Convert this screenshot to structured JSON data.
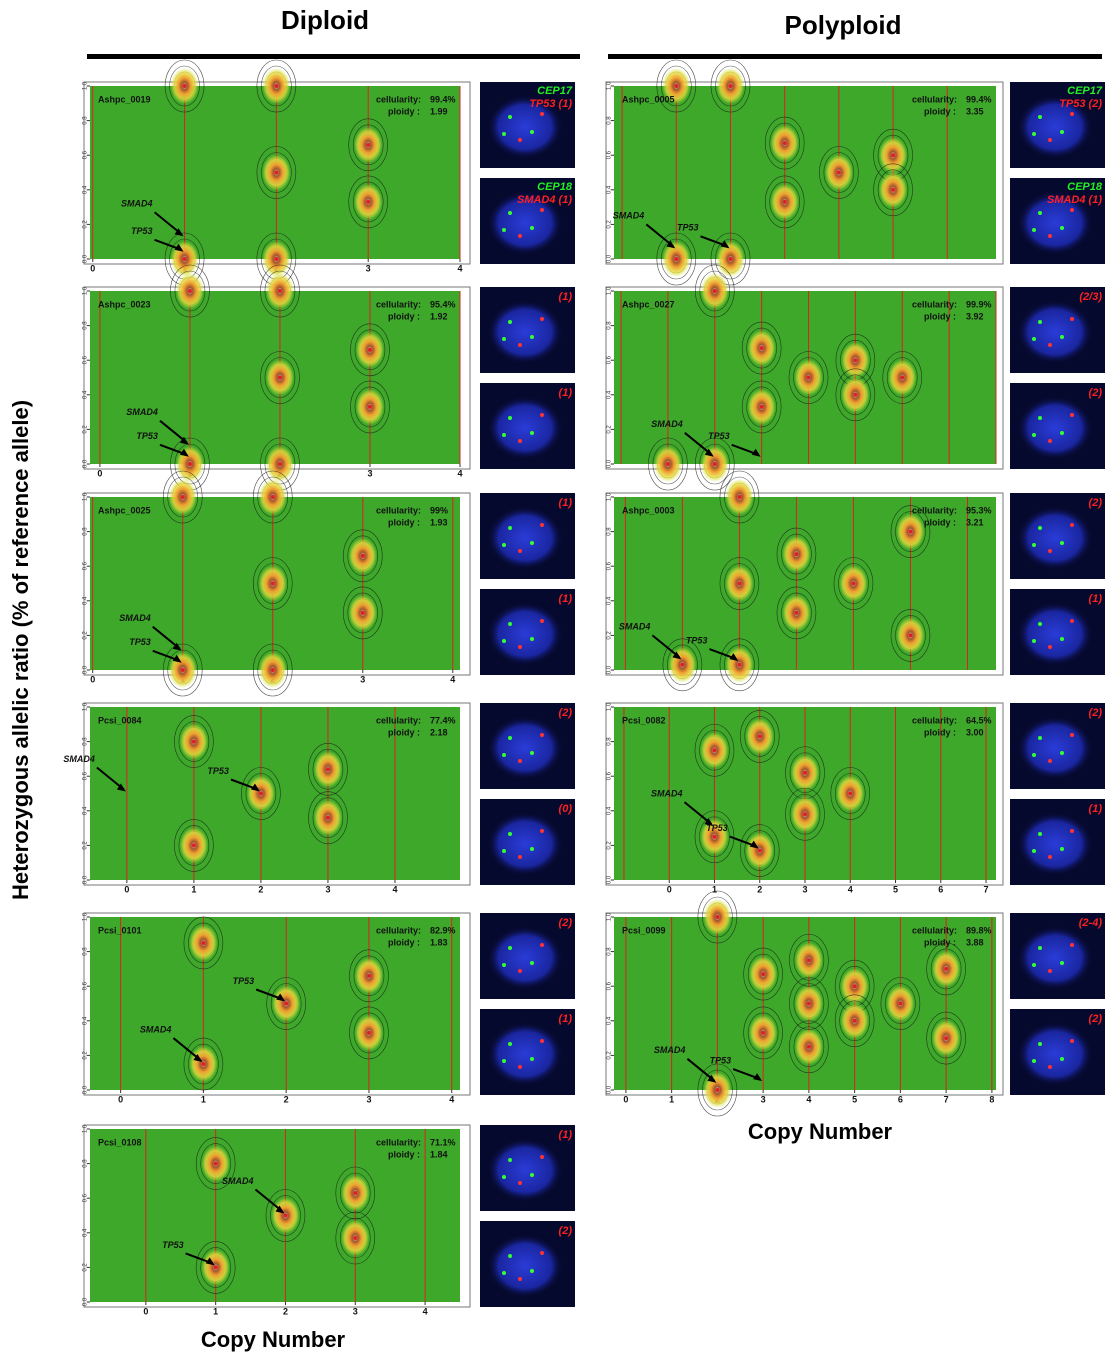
{
  "headers": {
    "diploid": "Diploid",
    "polyploid": "Polyploid"
  },
  "y_label": "Heterozygous allelic ratio (% of reference allele)",
  "x_label_left": "Copy Number",
  "x_label_right": "Copy Number",
  "cellularity_label": "cellularity:",
  "ploidy_label": "ploidy :",
  "yticks": [
    {
      "value": 0,
      "label": "0.0"
    },
    {
      "value": 0.2,
      "label": "0.2"
    },
    {
      "value": 0.4,
      "label": "0.4"
    },
    {
      "value": 0.6,
      "label": "0.6"
    },
    {
      "value": 0.8,
      "label": "0.8"
    },
    {
      "value": 1,
      "label": "1.0"
    }
  ],
  "panels": [
    {
      "column": "left",
      "id": "Ashpc_0019",
      "cellularity": "99.4%",
      "ploidy": "1.99",
      "xlim": [
        -0.03,
        4.0
      ],
      "xticks": [
        0,
        1,
        2,
        3,
        4
      ],
      "peaks": [
        [
          1,
          1
        ],
        [
          1,
          0
        ],
        [
          2,
          0.5
        ],
        [
          2,
          1
        ],
        [
          2,
          0
        ],
        [
          3,
          0.66
        ],
        [
          3,
          0.33
        ]
      ],
      "genes": [
        {
          "label": "SMAD4",
          "target": [
            1,
            0.12
          ]
        },
        {
          "label": "TP53",
          "target": [
            1,
            0.03
          ]
        }
      ],
      "fish": [
        {
          "probe": "CEP17",
          "target": "TP53 (1)"
        },
        {
          "probe": "CEP18",
          "target": "SMAD4 (1)"
        }
      ]
    },
    {
      "column": "left",
      "id": "Ashpc_0023",
      "cellularity": "95.4%",
      "ploidy": "1.92",
      "xlim": [
        -0.11,
        4.0
      ],
      "xticks": [
        0,
        1,
        2,
        3,
        4
      ],
      "peaks": [
        [
          1,
          1
        ],
        [
          1,
          0
        ],
        [
          2,
          0.5
        ],
        [
          2,
          1
        ],
        [
          2,
          0
        ],
        [
          3,
          0.66
        ],
        [
          3,
          0.33
        ]
      ],
      "genes": [
        {
          "label": "SMAD4",
          "target": [
            1,
            0.1
          ]
        },
        {
          "label": "TP53",
          "target": [
            1,
            0.03
          ]
        }
      ],
      "fish": [
        {
          "count": "(1)"
        },
        {
          "count": "(1)"
        }
      ]
    },
    {
      "column": "left",
      "id": "Ashpc_0025",
      "cellularity": "99%",
      "ploidy": "1.93",
      "xlim": [
        -0.03,
        4.08
      ],
      "xticks": [
        0,
        1,
        2,
        3,
        4
      ],
      "peaks": [
        [
          1,
          1
        ],
        [
          1,
          0
        ],
        [
          2,
          0.5
        ],
        [
          2,
          1
        ],
        [
          2,
          0
        ],
        [
          3,
          0.66
        ],
        [
          3,
          0.33
        ]
      ],
      "genes": [
        {
          "label": "SMAD4",
          "target": [
            1,
            0.1
          ]
        },
        {
          "label": "TP53",
          "target": [
            1,
            0.03
          ]
        }
      ],
      "fish": [
        {
          "count": "(1)"
        },
        {
          "count": "(1)"
        }
      ]
    },
    {
      "column": "left",
      "id": "Pcsi_0084",
      "cellularity": "77.4%",
      "ploidy": "2.18",
      "xlim": [
        -0.55,
        4.97
      ],
      "xticks": [
        0,
        1,
        2,
        3,
        4
      ],
      "peaks": [
        [
          1,
          0.8
        ],
        [
          1,
          0.2
        ],
        [
          2,
          0.5
        ],
        [
          3,
          0.64
        ],
        [
          3,
          0.36
        ]
      ],
      "genes": [
        {
          "label": "SMAD4",
          "target": [
            0,
            0.5
          ]
        },
        {
          "label": "TP53",
          "target": [
            2,
            0.5
          ]
        }
      ],
      "fish": [
        {
          "count": "(2)"
        },
        {
          "count": "(0)"
        }
      ]
    },
    {
      "column": "left",
      "id": "Pcsi_0101",
      "cellularity": "82.9%",
      "ploidy": "1.83",
      "xlim": [
        -0.37,
        4.1
      ],
      "xticks": [
        0,
        1,
        2,
        3,
        4
      ],
      "peaks": [
        [
          1,
          0.85
        ],
        [
          1,
          0.15
        ],
        [
          2,
          0.5
        ],
        [
          3,
          0.66
        ],
        [
          3,
          0.33
        ]
      ],
      "genes": [
        {
          "label": "SMAD4",
          "target": [
            1,
            0.15
          ]
        },
        {
          "label": "TP53",
          "target": [
            2,
            0.5
          ]
        }
      ],
      "fish": [
        {
          "count": "(2)"
        },
        {
          "count": "(1)"
        }
      ]
    },
    {
      "column": "left",
      "id": "Pcsi_0108",
      "cellularity": "71.1%",
      "ploidy": "1.84",
      "xlim": [
        -0.8,
        4.5
      ],
      "xticks": [
        0,
        1,
        2,
        3,
        4
      ],
      "peaks": [
        [
          1,
          0.8
        ],
        [
          1,
          0.2
        ],
        [
          2,
          0.5
        ],
        [
          3,
          0.63
        ],
        [
          3,
          0.37
        ]
      ],
      "genes": [
        {
          "label": "SMAD4",
          "target": [
            2,
            0.5
          ]
        },
        {
          "label": "TP53",
          "target": [
            1,
            0.2
          ]
        }
      ],
      "fish": [
        {
          "count": "(1)"
        },
        {
          "count": "(2)"
        }
      ]
    },
    {
      "column": "right",
      "id": "Ashpc_0005",
      "cellularity": "99.4%",
      "ploidy": "3.35",
      "xlim": [
        -0.15,
        6.9
      ],
      "peaks": [
        [
          1,
          1
        ],
        [
          1,
          0
        ],
        [
          2,
          0
        ],
        [
          2,
          1
        ],
        [
          3,
          0.67
        ],
        [
          3,
          0.33
        ],
        [
          4,
          0.5
        ],
        [
          5,
          0.6
        ],
        [
          5,
          0.4
        ]
      ],
      "genes": [
        {
          "label": "SMAD4",
          "target": [
            1,
            0.05
          ]
        },
        {
          "label": "TP53",
          "target": [
            2,
            0.05
          ]
        }
      ],
      "fish": [
        {
          "probe": "CEP17",
          "target": "TP53 (2)"
        },
        {
          "probe": "CEP18",
          "target": "SMAD4 (1)"
        }
      ]
    },
    {
      "column": "right",
      "id": "Ashpc_0027",
      "cellularity": "99.9%",
      "ploidy": "3.92",
      "xlim": [
        -0.15,
        8.0
      ],
      "peaks": [
        [
          1,
          0
        ],
        [
          2,
          0
        ],
        [
          2,
          1
        ],
        [
          3,
          0.67
        ],
        [
          3,
          0.33
        ],
        [
          4,
          0.5
        ],
        [
          5,
          0.6
        ],
        [
          5,
          0.4
        ],
        [
          6,
          0.5
        ]
      ],
      "genes": [
        {
          "label": "SMAD4",
          "target": [
            2,
            0.03
          ]
        },
        {
          "label": "TP53",
          "target": [
            3,
            0.03
          ]
        }
      ],
      "fish": [
        {
          "count": "(2/3)"
        },
        {
          "count": "(2)"
        }
      ]
    },
    {
      "column": "right",
      "id": "Ashpc_0003",
      "cellularity": "95.3%",
      "ploidy": "3.21",
      "xlim": [
        -0.2,
        6.5
      ],
      "peaks": [
        [
          1,
          0.03
        ],
        [
          2,
          0.03
        ],
        [
          2,
          1
        ],
        [
          2,
          0.5
        ],
        [
          3,
          0.67
        ],
        [
          3,
          0.33
        ],
        [
          4,
          0.5
        ],
        [
          5,
          0.8
        ],
        [
          5,
          0.2
        ]
      ],
      "genes": [
        {
          "label": "SMAD4",
          "target": [
            1,
            0.05
          ]
        },
        {
          "label": "TP53",
          "target": [
            2,
            0.04
          ]
        }
      ],
      "fish": [
        {
          "count": "(2)"
        },
        {
          "count": "(1)"
        }
      ]
    },
    {
      "column": "right",
      "id": "Pcsi_0082",
      "cellularity": "64.5%",
      "ploidy": "3.00",
      "xlim": [
        -1.22,
        7.22
      ],
      "xticks": [
        0,
        1,
        2,
        3,
        4,
        5,
        6,
        7
      ],
      "peaks": [
        [
          1,
          0.75
        ],
        [
          1,
          0.25
        ],
        [
          2,
          0.83
        ],
        [
          2,
          0.17
        ],
        [
          3,
          0.62
        ],
        [
          3,
          0.38
        ],
        [
          4,
          0.5
        ]
      ],
      "genes": [
        {
          "label": "SMAD4",
          "target": [
            1,
            0.3
          ]
        },
        {
          "label": "TP53",
          "target": [
            2,
            0.17
          ]
        }
      ],
      "fish": [
        {
          "count": "(2)"
        },
        {
          "count": "(1)"
        }
      ]
    },
    {
      "column": "right",
      "id": "Pcsi_0099",
      "cellularity": "89.8%",
      "ploidy": "3.88",
      "xlim": [
        -0.26,
        8.09
      ],
      "xticks": [
        0,
        1,
        2,
        3,
        4,
        5,
        6,
        7,
        8
      ],
      "peaks": [
        [
          2,
          1
        ],
        [
          2,
          0
        ],
        [
          3,
          0.67
        ],
        [
          3,
          0.33
        ],
        [
          4,
          0.5
        ],
        [
          4,
          0.75
        ],
        [
          4,
          0.25
        ],
        [
          5,
          0.6
        ],
        [
          5,
          0.4
        ],
        [
          6,
          0.5
        ],
        [
          7,
          0.7
        ],
        [
          7,
          0.3
        ]
      ],
      "genes": [
        {
          "label": "SMAD4",
          "target": [
            2,
            0.03
          ]
        },
        {
          "label": "TP53",
          "target": [
            3,
            0.04
          ]
        }
      ],
      "fish": [
        {
          "count": "(2-4)"
        },
        {
          "count": "(2)"
        }
      ]
    }
  ]
}
